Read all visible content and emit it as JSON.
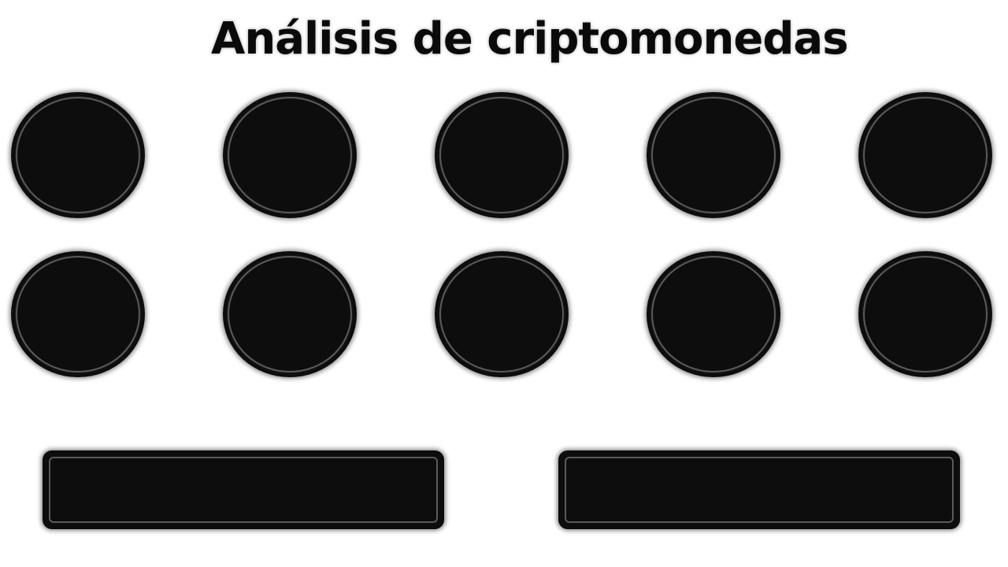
{
  "title": "Análisis de criptomonedas",
  "coins_row_1": [
    "",
    "",
    "",
    "",
    ""
  ],
  "coins_row_2": [
    "",
    "",
    "",
    "",
    ""
  ],
  "panels": [
    "",
    ""
  ],
  "colors": {
    "background": "#ffffff",
    "shape_fill": "#0d0d0d",
    "shape_inner_ring": "#5a5a5a",
    "title_text": "#0a0a0a"
  }
}
